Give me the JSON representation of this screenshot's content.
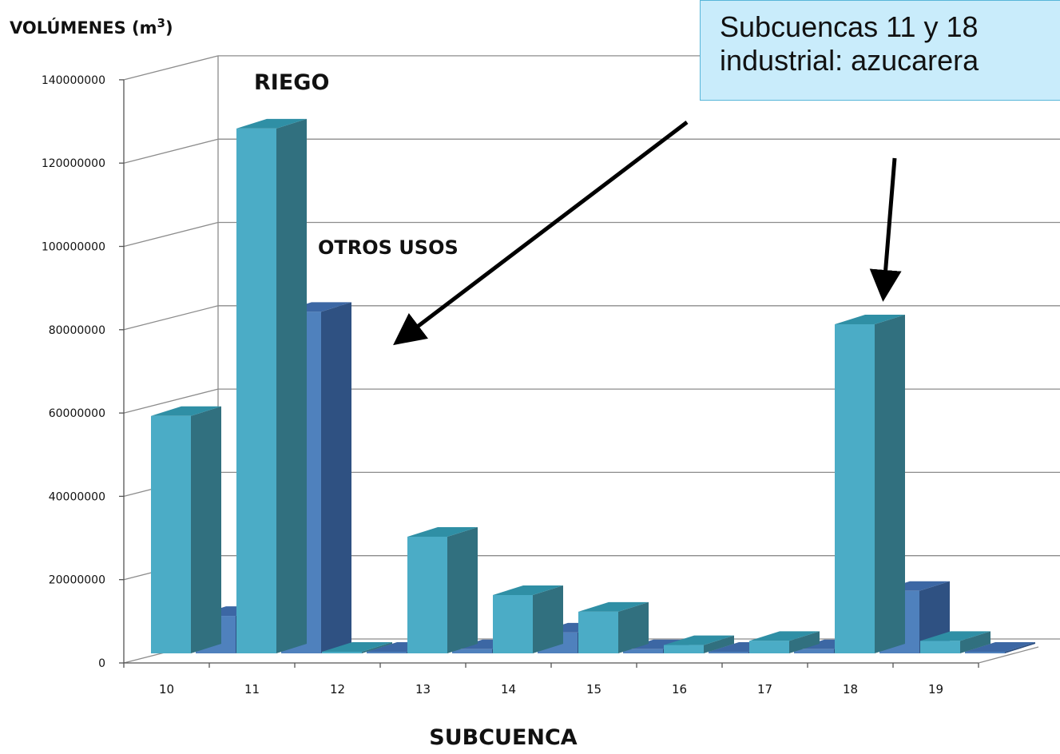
{
  "chart_data": {
    "type": "bar",
    "title": "",
    "ylabel": "VOLÚMENES (m",
    "ylabel_sup": "3",
    "ylabel_close": ")",
    "xlabel": "SUBCUENCA",
    "categories": [
      "10",
      "11",
      "12",
      "13",
      "14",
      "15",
      "16",
      "17",
      "18",
      "19"
    ],
    "series": [
      {
        "name": "RIEGO",
        "values": [
          57000000,
          126000000,
          0,
          28000000,
          14000000,
          10000000,
          2000000,
          3000000,
          79000000,
          3000000
        ],
        "color": "#4bacc6"
      },
      {
        "name": "OTROS USOS",
        "values": [
          9000000,
          82000000,
          0,
          1000000,
          5000000,
          1000000,
          0,
          1000000,
          15000000,
          0
        ],
        "color": "#4f81bd"
      }
    ],
    "y_ticks": [
      "0",
      "20000000",
      "40000000",
      "60000000",
      "80000000",
      "100000000",
      "120000000",
      "140000000"
    ],
    "ylim": [
      0,
      140000000
    ],
    "grid": true,
    "projection": "3d-perspective"
  },
  "annotation": {
    "line1": "Subcuencas 11 y 18",
    "line2": "industrial: azucarera"
  },
  "colors": {
    "riego_front": "#4bacc6",
    "riego_side": "#31707f",
    "riego_top": "#2f8fa5",
    "otros_front": "#4f81bd",
    "otros_side": "#2f5182",
    "otros_top": "#3c67a4",
    "grid": "#8c8c8c",
    "callout_bg": "#c9ecfb",
    "callout_border": "#58b6d9"
  }
}
